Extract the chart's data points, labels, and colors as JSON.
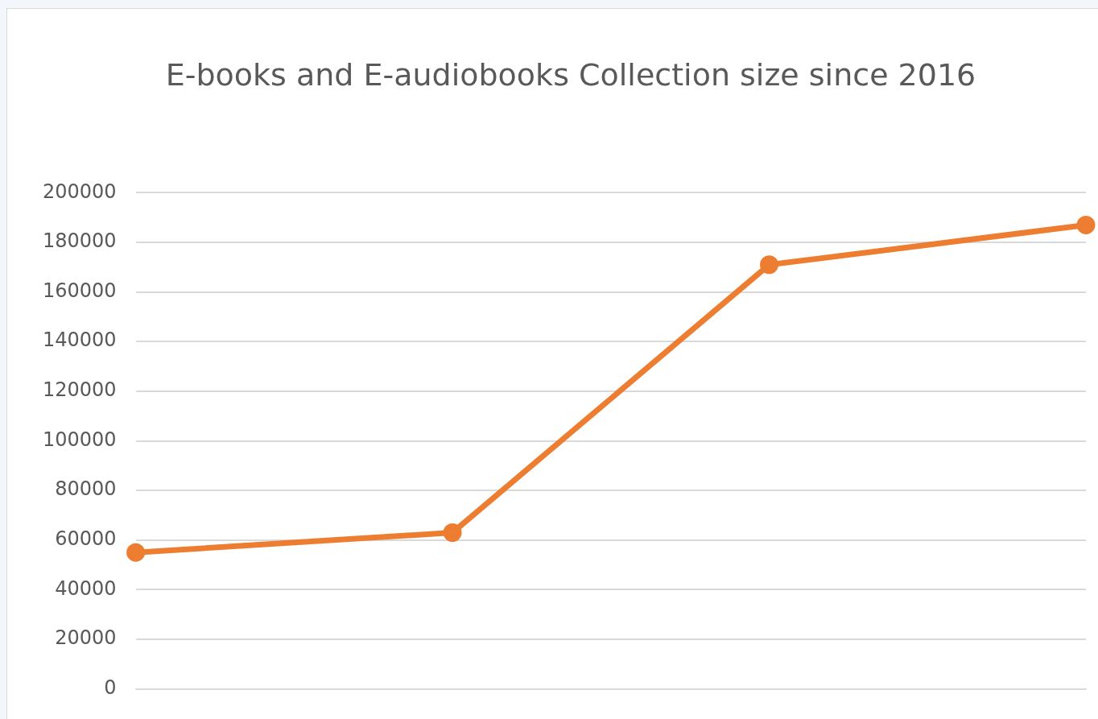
{
  "chart_data": {
    "type": "line",
    "title": "E-books and E-audiobooks Collection size since 2016",
    "categories": [
      null,
      null,
      null,
      null
    ],
    "series": [
      {
        "color": "#ed7d31",
        "values": [
          55000,
          63000,
          171000,
          187000
        ]
      }
    ],
    "ylim": [
      0,
      200000
    ],
    "yticks": [
      0,
      20000,
      40000,
      60000,
      80000,
      100000,
      120000,
      140000,
      160000,
      180000,
      200000
    ],
    "grid": "y",
    "legend": false,
    "tick_labels": "y",
    "marker": "circle",
    "line_style": "solid"
  }
}
